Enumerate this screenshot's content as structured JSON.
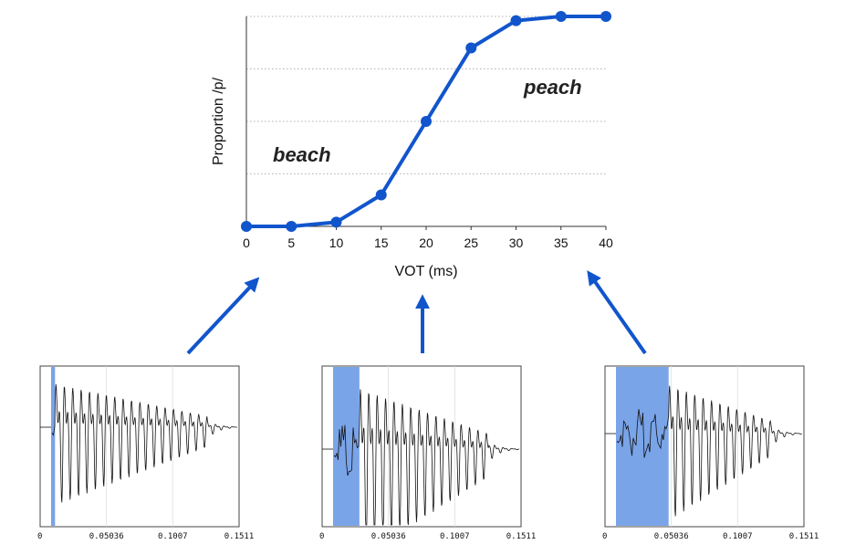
{
  "chart_data": {
    "type": "line",
    "x": [
      0,
      5,
      10,
      15,
      20,
      25,
      30,
      35,
      40
    ],
    "y": [
      0.0,
      0.0,
      0.02,
      0.15,
      0.5,
      0.85,
      0.98,
      1.0,
      1.0
    ],
    "xlabel": "VOT (ms)",
    "ylabel": "Proportion /p/",
    "xlim": [
      0,
      40
    ],
    "ylim": [
      0,
      1
    ],
    "x_ticks": [
      "0",
      "5",
      "10",
      "15",
      "20",
      "25",
      "30",
      "35",
      "40"
    ],
    "grid": "horizontal dotted",
    "line_color": "#1155cc",
    "annotations": [
      "beach",
      "peach"
    ]
  },
  "waveforms": [
    {
      "ticks": [
        "0",
        "0.05036",
        "0.1007",
        "0.1511"
      ],
      "highlight_ms": [
        0,
        3
      ],
      "highlight_color": "#7aa4e8"
    },
    {
      "ticks": [
        "0",
        "0.05036",
        "0.1007",
        "0.1511"
      ],
      "highlight_ms": [
        0,
        20
      ],
      "highlight_color": "#7aa4e8"
    },
    {
      "ticks": [
        "0",
        "0.05036",
        "0.1007",
        "0.1511"
      ],
      "highlight_ms": [
        0,
        40
      ],
      "highlight_color": "#7aa4e8"
    }
  ],
  "arrow_color": "#1155cc"
}
